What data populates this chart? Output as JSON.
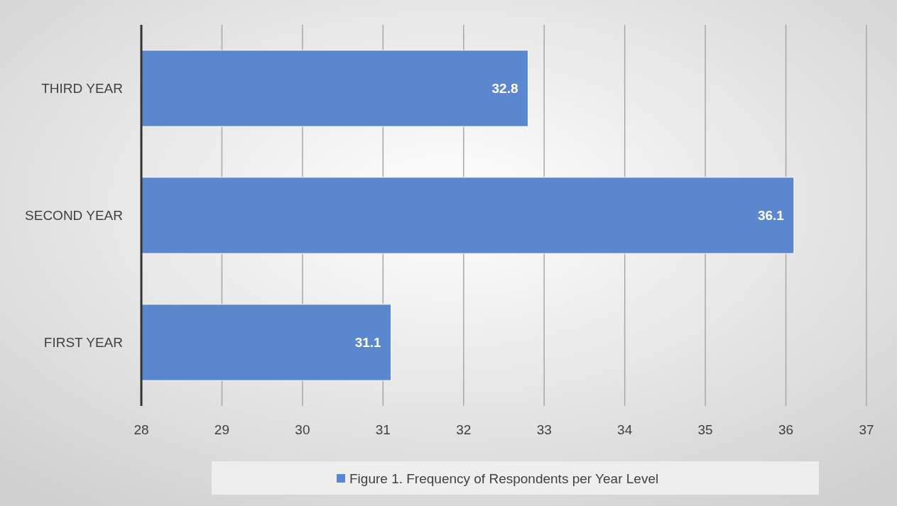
{
  "chart_data": {
    "type": "bar",
    "orientation": "horizontal",
    "categories": [
      "THIRD YEAR",
      "SECOND YEAR",
      "FIRST YEAR"
    ],
    "series": [
      {
        "name": "Figure 1. Frequency of Respondents per Year Level",
        "color": "#5b87cf",
        "values": [
          32.8,
          36.1,
          31.1
        ]
      }
    ],
    "xlim": [
      28,
      37
    ],
    "xticks": [
      28,
      29,
      30,
      31,
      32,
      33,
      34,
      35,
      36,
      37
    ],
    "grid": "x",
    "data_labels": true,
    "legend": "bottom"
  }
}
